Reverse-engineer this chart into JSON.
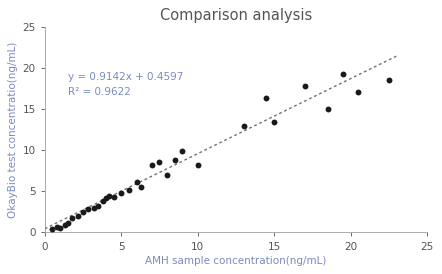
{
  "title": "Comparison analysis",
  "xlabel": "AMH sample concentration(ng/mL)",
  "ylabel": "OkayBio test concentratio(ng/mL)",
  "xlim": [
    0,
    25
  ],
  "ylim": [
    0,
    25
  ],
  "xticks": [
    0,
    5,
    10,
    15,
    20,
    25
  ],
  "yticks": [
    0,
    5,
    10,
    15,
    20,
    25
  ],
  "equation": "y = 0.9142x + 0.4597",
  "r_squared": "R² = 0.9622",
  "slope": 0.9142,
  "intercept": 0.4597,
  "scatter_color": "#1a1a1a",
  "line_color": "#707070",
  "equation_color": "#7b8bbf",
  "title_color": "#555555",
  "axis_label_color": "#7b8bbf",
  "tick_color": "#555555",
  "scatter_x": [
    0.5,
    0.8,
    1.0,
    1.3,
    1.5,
    1.8,
    2.2,
    2.5,
    2.8,
    3.2,
    3.5,
    3.8,
    4.0,
    4.2,
    4.5,
    5.0,
    5.5,
    6.0,
    6.3,
    7.0,
    7.5,
    8.0,
    8.5,
    9.0,
    10.0,
    13.0,
    14.5,
    15.0,
    17.0,
    18.5,
    19.5,
    20.5,
    22.5
  ],
  "scatter_y": [
    0.4,
    0.7,
    0.5,
    0.9,
    1.2,
    1.8,
    2.0,
    2.5,
    2.8,
    3.0,
    3.2,
    3.8,
    4.2,
    4.5,
    4.3,
    4.8,
    5.2,
    6.1,
    5.5,
    8.2,
    8.6,
    7.0,
    8.8,
    9.9,
    8.2,
    13.0,
    16.4,
    13.5,
    17.8,
    15.1,
    19.3,
    17.1,
    18.6
  ],
  "line_x_start": 0,
  "line_x_end": 23,
  "fig_width": 4.42,
  "fig_height": 2.74,
  "dpi": 100
}
